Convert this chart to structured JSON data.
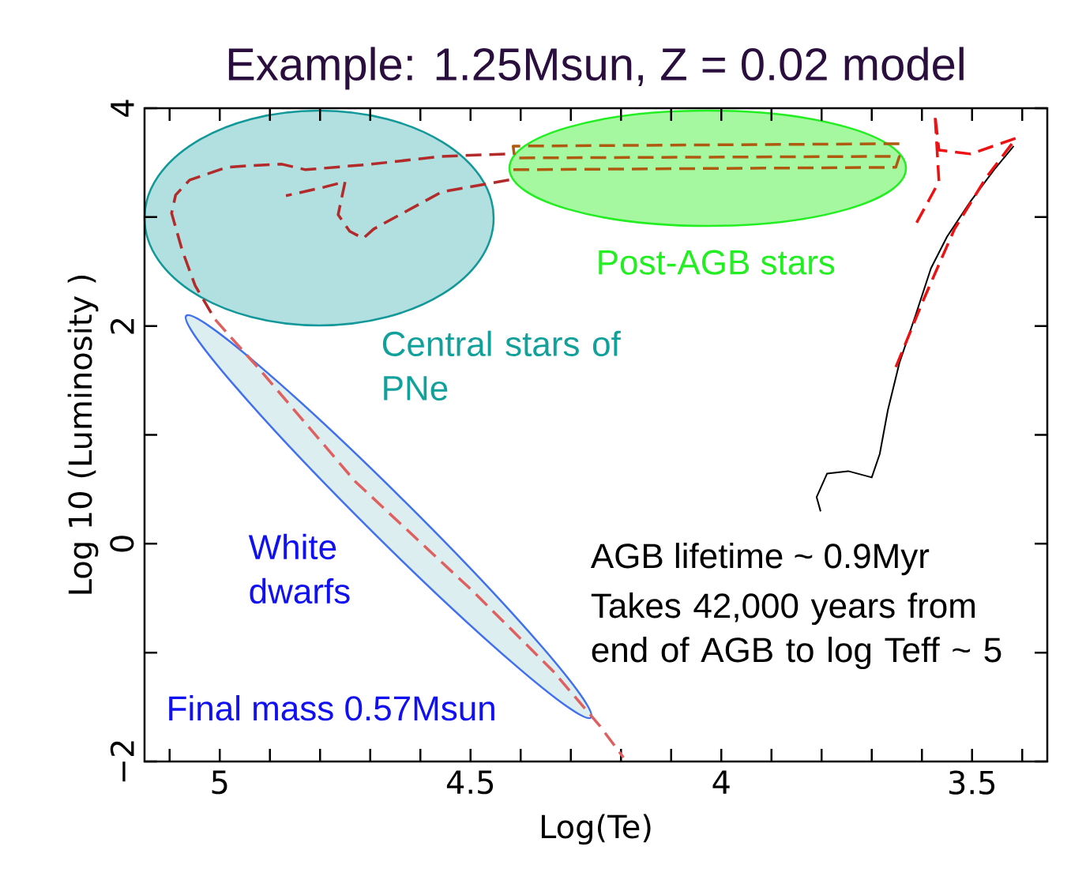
{
  "chart_data": {
    "type": "line",
    "title": "Example: 1.25Msun, Z = 0.02 model",
    "xlabel": "Log(Te)",
    "ylabel": "Log 10 (Luminosity )",
    "xlim": [
      5.15,
      3.35
    ],
    "ylim": [
      -2,
      4
    ],
    "xticks": [
      {
        "value": 5.1,
        "label": null
      },
      5,
      {
        "value": 4.9,
        "label": null
      },
      {
        "value": 4.8,
        "label": null
      },
      {
        "value": 4.7,
        "label": null
      },
      {
        "value": 4.6,
        "label": null
      },
      4.5,
      {
        "value": 4.4,
        "label": null
      },
      {
        "value": 4.3,
        "label": null
      },
      {
        "value": 4.2,
        "label": null
      },
      {
        "value": 4.1,
        "label": null
      },
      4,
      {
        "value": 3.9,
        "label": null
      },
      {
        "value": 3.8,
        "label": null
      },
      {
        "value": 3.7,
        "label": null
      },
      {
        "value": 3.6,
        "label": null
      },
      3.5,
      {
        "value": 3.4,
        "label": null
      }
    ],
    "yticks": [
      {
        "value": -2,
        "label": "−2"
      },
      {
        "value": -1,
        "label": null
      },
      0,
      {
        "value": 1,
        "label": null
      },
      2,
      {
        "value": 3,
        "label": null
      },
      4
    ],
    "series": [
      {
        "color": "#000000",
        "line_style": "solid",
        "x": [
          3.802,
          3.81,
          3.789,
          3.747,
          3.7,
          3.684,
          3.668,
          3.645,
          3.613,
          3.582,
          3.55,
          3.503,
          3.456,
          3.417
        ],
        "values": [
          0.297,
          0.428,
          0.645,
          0.667,
          0.609,
          0.826,
          1.225,
          1.659,
          2.094,
          2.529,
          2.819,
          3.145,
          3.435,
          3.652
        ]
      },
      {
        "color": "#ee1111",
        "line_style": "dashed",
        "x": [
          3.652,
          3.597,
          3.535,
          3.472,
          3.412,
          3.503,
          3.566,
          3.574,
          3.566,
          3.613
        ],
        "values": [
          1.623,
          2.239,
          2.891,
          3.362,
          3.725,
          3.58,
          3.616,
          3.942,
          3.326,
          2.928
        ]
      },
      {
        "color": "#b05a10",
        "line_style": "dashed",
        "x": [
          3.645,
          4.415,
          4.412,
          3.645,
          3.652,
          4.415
        ],
        "values": [
          3.674,
          3.652,
          3.543,
          3.558,
          3.457,
          3.435
        ]
      },
      {
        "color": "#b22a2a",
        "line_style": "dashed",
        "x": [
          4.431,
          4.557,
          4.698,
          4.829,
          4.876,
          4.945,
          4.986,
          5.06,
          5.088,
          5.096,
          5.075,
          5.049,
          5.009
        ],
        "values": [
          3.58,
          3.558,
          3.486,
          3.435,
          3.486,
          3.471,
          3.457,
          3.341,
          3.203,
          3.036,
          2.696,
          2.37,
          2.058
        ]
      },
      {
        "color": "#b22a2a",
        "line_style": "dashed",
        "x": [
          4.423,
          4.557,
          4.693,
          4.714,
          4.741,
          4.764,
          4.75,
          4.792,
          4.868
        ],
        "values": [
          3.341,
          3.232,
          2.891,
          2.804,
          2.87,
          3.022,
          3.326,
          3.275,
          3.196
        ]
      },
      {
        "color": "#e06060",
        "line_style": "dashed",
        "x": [
          5.009,
          4.918,
          4.73,
          4.494,
          4.336,
          4.242,
          4.195
        ],
        "values": [
          2.058,
          1.587,
          0.572,
          -0.442,
          -1.167,
          -1.674,
          -1.964
        ]
      }
    ],
    "annotations": [
      "Post-AGB stars",
      "Central stars of PNe",
      "White dwarfs",
      "Final mass 0.57Msun",
      "AGB lifetime ~ 0.9Myr",
      "Takes 42,000 years from end of AGB to log Teff ~ 5"
    ]
  }
}
